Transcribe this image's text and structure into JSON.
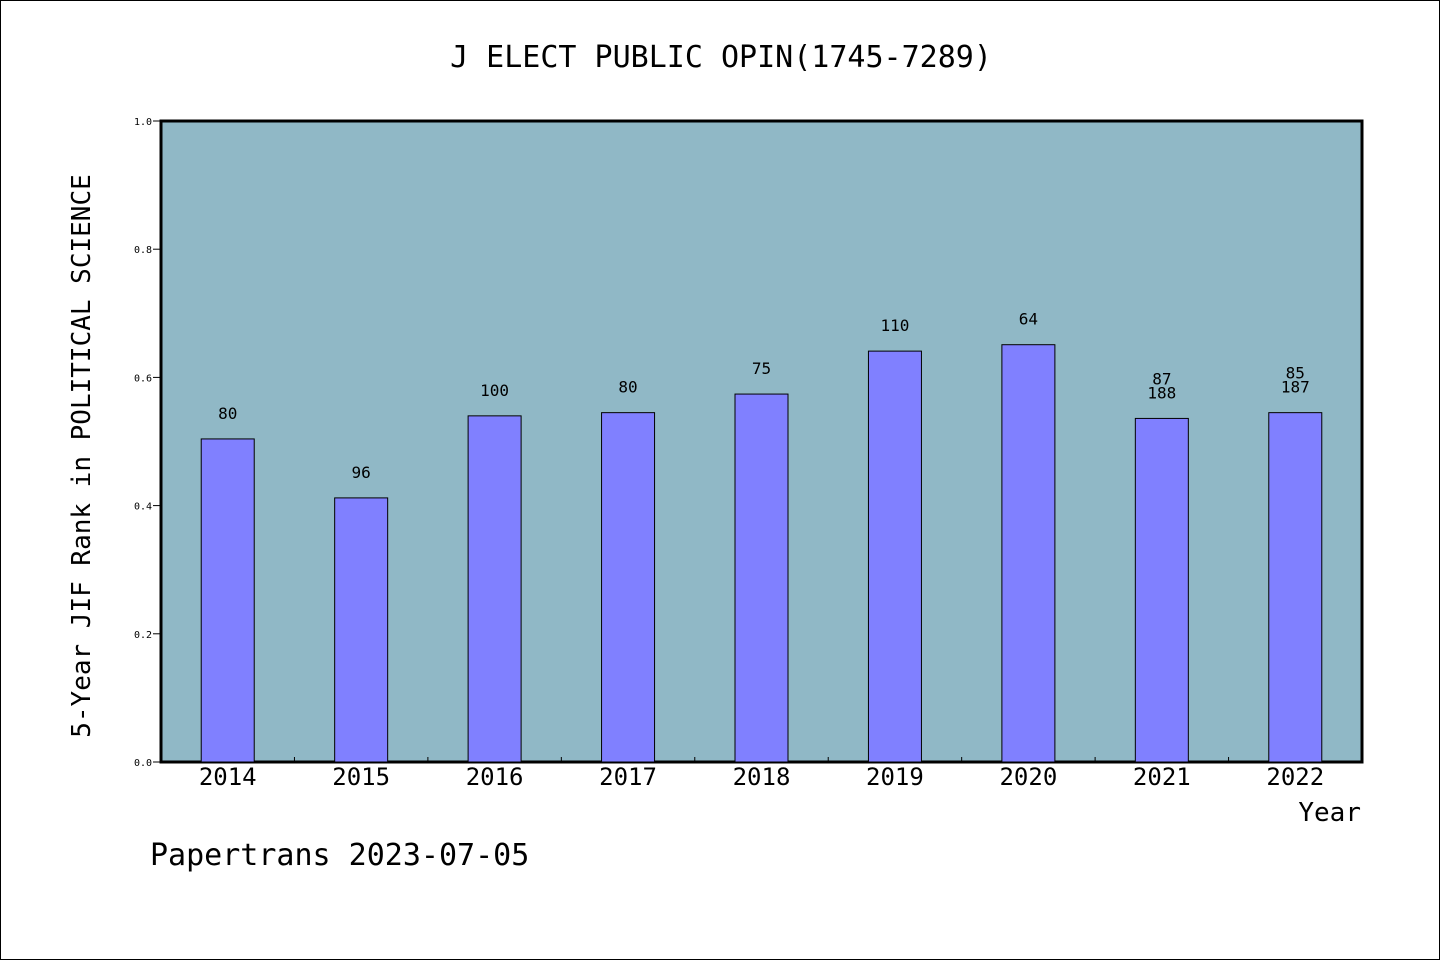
{
  "chart_data": {
    "type": "bar",
    "title": "J ELECT PUBLIC OPIN(1745-7289)",
    "xlabel": "Year",
    "ylabel": "5-Year JIF Rank in POLITICAL SCIENCE",
    "categories": [
      "2014",
      "2015",
      "2016",
      "2017",
      "2018",
      "2019",
      "2020",
      "2021",
      "2022"
    ],
    "values": [
      0.504,
      0.412,
      0.54,
      0.545,
      0.574,
      0.641,
      0.651,
      0.536,
      0.545
    ],
    "data_labels": [
      [
        "80"
      ],
      [
        "96"
      ],
      [
        "100"
      ],
      [
        "80"
      ],
      [
        "75"
      ],
      [
        "110"
      ],
      [
        "64"
      ],
      [
        "87",
        "188"
      ],
      [
        "85",
        "187"
      ]
    ],
    "ylim": [
      0,
      1.0
    ],
    "yticks": [
      "0.0",
      "0.2",
      "0.4",
      "0.6",
      "0.8",
      "1.0"
    ],
    "grid": false,
    "legend": "none",
    "colors": {
      "plot_background": "#90b8c6",
      "bar_fill": "#8080ff",
      "bar_stroke": "#000000"
    }
  },
  "footer": "Papertrans 2023-07-05"
}
